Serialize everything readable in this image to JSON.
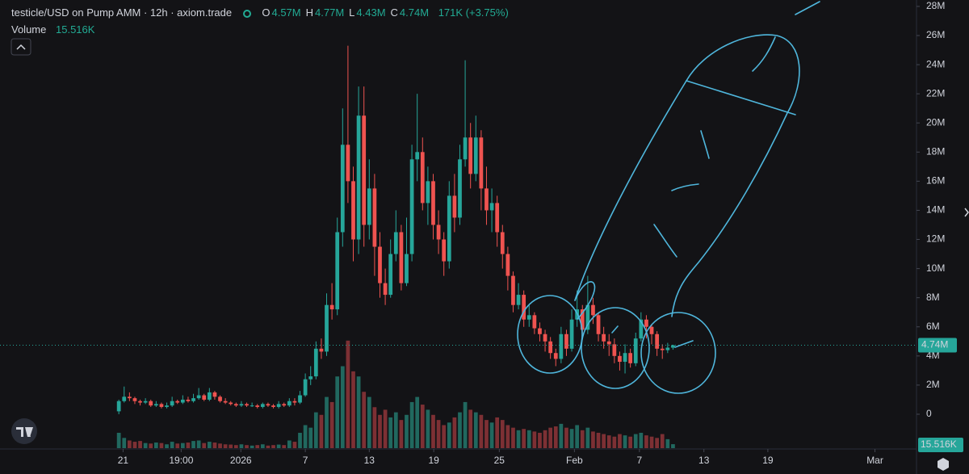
{
  "chart_data": {
    "type": "candlestick",
    "header": {
      "title": "testicle/USD on Pump AMM · 12h · axiom.trade",
      "ohlc": [
        {
          "key": "O",
          "value": "4.57M"
        },
        {
          "key": "H",
          "value": "4.77M"
        },
        {
          "key": "L",
          "value": "4.43M"
        },
        {
          "key": "C",
          "value": "4.74M"
        }
      ],
      "change": "171K (+3.75%)",
      "volume_title": "Volume",
      "volume_value": "15.516K"
    },
    "last_price_label": "4.74M",
    "last_volume_label": "15.516K",
    "up_color": "#26a69a",
    "down_color": "#ef5350",
    "volume_up_color": "#21685f",
    "volume_down_color": "#7d3034",
    "grid": false,
    "xlim": [
      -22.3,
      149.7
    ],
    "xticks": [
      {
        "value": 0.8,
        "label": "21"
      },
      {
        "value": 11.7,
        "label": "19:00"
      },
      {
        "value": 22.9,
        "label": "2026"
      },
      {
        "value": 35,
        "label": "7"
      },
      {
        "value": 47,
        "label": "13"
      },
      {
        "value": 59.1,
        "label": "19"
      },
      {
        "value": 71.4,
        "label": "25"
      },
      {
        "value": 85.5,
        "label": "Feb"
      },
      {
        "value": 97.7,
        "label": "7"
      },
      {
        "value": 109.8,
        "label": "13"
      },
      {
        "value": 121.8,
        "label": "19"
      },
      {
        "value": 141.9,
        "label": "Mar"
      }
    ],
    "ylim": [
      -2330000.0,
      28440000.0
    ],
    "yticks": [
      0,
      {
        "value": 2000000.0,
        "label": "2M"
      },
      {
        "value": 4000000.0,
        "label": "4M"
      },
      {
        "value": 6000000.0,
        "label": "6M"
      },
      {
        "value": 8000000.0,
        "label": "8M"
      },
      {
        "value": 10000000.0,
        "label": "10M"
      },
      {
        "value": 12000000.0,
        "label": "12M"
      },
      {
        "value": 14000000.0,
        "label": "14M"
      },
      {
        "value": 16000000.0,
        "label": "16M"
      },
      {
        "value": 18000000.0,
        "label": "18M"
      },
      {
        "value": 20000000.0,
        "label": "20M"
      },
      {
        "value": 22000000.0,
        "label": "22M"
      },
      {
        "value": 24000000.0,
        "label": "24M"
      },
      {
        "value": 26000000.0,
        "label": "26M"
      },
      {
        "value": 28000000.0,
        "label": "28M"
      }
    ],
    "y2lim": [
      0,
      1750000.0
    ],
    "open": [
      200000.0,
      900000.0,
      1200000.0,
      1100000.0,
      900000.0,
      800000.0,
      900000.0,
      600000.0,
      700000.0,
      500000.0,
      600000.0,
      900000.0,
      800000.0,
      1000000.0,
      900000.0,
      1100000.0,
      1300000.0,
      1000000.0,
      1500000.0,
      1200000.0,
      900000.0,
      800000.0,
      700000.0,
      600000.0,
      700000.0,
      600000.0,
      600000.0,
      500000.0,
      700000.0,
      600000.0,
      500000.0,
      700000.0,
      600000.0,
      900000.0,
      800000.0,
      1300000.0,
      2400000.0,
      2600000.0,
      4500000.0,
      4300000.0,
      7500000.0,
      7200000.0,
      12500000.0,
      18500000.0,
      16000000.0,
      12000000.0,
      20500000.0,
      13000000.0,
      15500000.0,
      11500000.0,
      9000000.0,
      8200000.0,
      11000000.0,
      12500000.0,
      9000000.0,
      11000000.0,
      17500000.0,
      18000000.0,
      14500000.0,
      16000000.0,
      13000000.0,
      12000000.0,
      10500000.0,
      15000000.0,
      13500000.0,
      17500000.0,
      19000000.0,
      16500000.0,
      19000000.0,
      15500000.0,
      14000000.0,
      14500000.0,
      12500000.0,
      11000000.0,
      9500000.0,
      7500000.0,
      8200000.0,
      6500000.0,
      6800000.0,
      5900000.0,
      5500000.0,
      5000000.0,
      4200000.0,
      3800000.0,
      5500000.0,
      4500000.0,
      6500000.0,
      7200000.0,
      5800000.0,
      7500000.0,
      6800000.0,
      5500000.0,
      5000000.0,
      4800000.0,
      4000000.0,
      3600000.0,
      4200000.0,
      3500000.0,
      5200000.0,
      6500000.0,
      6000000.0,
      5500000.0,
      4500000.0,
      4400000.0,
      4570000.0
    ],
    "high": [
      1000000.0,
      1900000.0,
      1500000.0,
      1200000.0,
      1000000.0,
      1100000.0,
      1000000.0,
      900000.0,
      800000.0,
      800000.0,
      1200000.0,
      1000000.0,
      1300000.0,
      1200000.0,
      1400000.0,
      1800000.0,
      1400000.0,
      1800000.0,
      1600000.0,
      1300000.0,
      1100000.0,
      900000.0,
      800000.0,
      900000.0,
      800000.0,
      800000.0,
      700000.0,
      800000.0,
      800000.0,
      700000.0,
      900000.0,
      800000.0,
      1100000.0,
      1100000.0,
      1600000.0,
      2800000.0,
      3300000.0,
      5000000.0,
      5200000.0,
      8300000.0,
      9000000.0,
      13500000.0,
      21000000.0,
      25300000.0,
      17000000.0,
      22500000.0,
      22500000.0,
      17500000.0,
      16500000.0,
      12500000.0,
      10000000.0,
      12000000.0,
      14000000.0,
      13000000.0,
      13500000.0,
      18500000.0,
      22000000.0,
      19000000.0,
      17000000.0,
      16500000.0,
      14000000.0,
      12500000.0,
      16000000.0,
      16500000.0,
      18500000.0,
      24300000.0,
      20000000.0,
      20500000.0,
      19500000.0,
      17000000.0,
      15500000.0,
      15000000.0,
      13000000.0,
      11500000.0,
      9800000.0,
      9000000.0,
      8500000.0,
      7500000.0,
      7000000.0,
      6300000.0,
      5800000.0,
      5300000.0,
      4500000.0,
      6000000.0,
      5800000.0,
      7200000.0,
      8500000.0,
      7500000.0,
      9500000.0,
      8000000.0,
      7000000.0,
      6000000.0,
      5500000.0,
      5200000.0,
      4300000.0,
      4800000.0,
      4500000.0,
      5600000.0,
      7000000.0,
      6800000.0,
      6200000.0,
      5700000.0,
      4800000.0,
      4900000.0,
      4770000.0
    ],
    "low": [
      0,
      800000.0,
      900000.0,
      700000.0,
      600000.0,
      700000.0,
      500000.0,
      500000.0,
      400000.0,
      400000.0,
      500000.0,
      700000.0,
      700000.0,
      800000.0,
      800000.0,
      1000000.0,
      900000.0,
      900000.0,
      1000000.0,
      800000.0,
      700000.0,
      600000.0,
      500000.0,
      500000.0,
      500000.0,
      500000.0,
      400000.0,
      400000.0,
      500000.0,
      400000.0,
      400000.0,
      500000.0,
      500000.0,
      600000.0,
      700000.0,
      1200000.0,
      2000000.0,
      2400000.0,
      3800000.0,
      4000000.0,
      6500000.0,
      6800000.0,
      11500000.0,
      14500000.0,
      10500000.0,
      11000000.0,
      11500000.0,
      12000000.0,
      9500000.0,
      8000000.0,
      7500000.0,
      8000000.0,
      10500000.0,
      8500000.0,
      8800000.0,
      10500000.0,
      16000000.0,
      14000000.0,
      13000000.0,
      12000000.0,
      11000000.0,
      9500000.0,
      10000000.0,
      12500000.0,
      13000000.0,
      17000000.0,
      15500000.0,
      16000000.0,
      14000000.0,
      13000000.0,
      12500000.0,
      11500000.0,
      10000000.0,
      8500000.0,
      7000000.0,
      7200000.0,
      6000000.0,
      6000000.0,
      5500000.0,
      5000000.0,
      4300000.0,
      3800000.0,
      3300000.0,
      3500000.0,
      4000000.0,
      4300000.0,
      6000000.0,
      5200000.0,
      5500000.0,
      6200000.0,
      5000000.0,
      4500000.0,
      4000000.0,
      3500000.0,
      3000000.0,
      2800000.0,
      3200000.0,
      3300000.0,
      5000000.0,
      5200000.0,
      4800000.0,
      4000000.0,
      3800000.0,
      4200000.0,
      4430000.0
    ],
    "close": [
      900000.0,
      1200000.0,
      1100000.0,
      900000.0,
      800000.0,
      900000.0,
      600000.0,
      700000.0,
      500000.0,
      600000.0,
      900000.0,
      800000.0,
      1000000.0,
      900000.0,
      1100000.0,
      1300000.0,
      1000000.0,
      1500000.0,
      1200000.0,
      900000.0,
      800000.0,
      700000.0,
      600000.0,
      700000.0,
      600000.0,
      600000.0,
      500000.0,
      700000.0,
      600000.0,
      500000.0,
      700000.0,
      600000.0,
      900000.0,
      800000.0,
      1300000.0,
      2400000.0,
      2600000.0,
      4500000.0,
      4300000.0,
      7500000.0,
      7200000.0,
      12500000.0,
      18500000.0,
      16000000.0,
      12000000.0,
      20500000.0,
      13000000.0,
      15500000.0,
      11500000.0,
      9000000.0,
      8200000.0,
      11000000.0,
      12500000.0,
      9000000.0,
      11000000.0,
      17500000.0,
      18000000.0,
      14500000.0,
      16000000.0,
      13000000.0,
      12000000.0,
      10500000.0,
      15000000.0,
      13500000.0,
      17500000.0,
      19000000.0,
      16500000.0,
      19000000.0,
      15500000.0,
      14000000.0,
      14500000.0,
      12500000.0,
      11000000.0,
      9500000.0,
      7500000.0,
      8200000.0,
      6500000.0,
      6800000.0,
      5900000.0,
      5500000.0,
      5000000.0,
      4200000.0,
      3800000.0,
      5500000.0,
      4500000.0,
      6500000.0,
      7200000.0,
      5800000.0,
      7500000.0,
      6800000.0,
      5500000.0,
      5000000.0,
      4800000.0,
      4000000.0,
      3600000.0,
      4200000.0,
      3500000.0,
      5200000.0,
      6500000.0,
      6000000.0,
      5500000.0,
      4500000.0,
      4400000.0,
      4570000.0,
      4740000.0
    ],
    "volume": [
      60000.0,
      40000.0,
      30000.0,
      25000.0,
      28000.0,
      20000.0,
      18000.0,
      22000.0,
      20000.0,
      15000.0,
      25000.0,
      18000.0,
      20000.0,
      22000.0,
      28000.0,
      30000.0,
      20000.0,
      25000.0,
      22000.0,
      18000.0,
      15000.0,
      14000.0,
      12000.0,
      15000.0,
      12000.0,
      10000.0,
      12000.0,
      15000.0,
      10000.0,
      12000.0,
      14000.0,
      12000.0,
      30000.0,
      25000.0,
      60000.0,
      90000.0,
      80000.0,
      140000.0,
      130000.0,
      200000.0,
      180000.0,
      280000.0,
      320000.0,
      420000.0,
      300000.0,
      280000.0,
      220000.0,
      200000.0,
      160000.0,
      130000.0,
      150000.0,
      120000.0,
      140000.0,
      110000.0,
      130000.0,
      180000.0,
      200000.0,
      170000.0,
      150000.0,
      130000.0,
      110000.0,
      90000.0,
      100000.0,
      120000.0,
      140000.0,
      180000.0,
      150000.0,
      140000.0,
      130000.0,
      110000.0,
      100000.0,
      120000.0,
      110000.0,
      90000.0,
      80000.0,
      70000.0,
      75000.0,
      70000.0,
      65000.0,
      60000.0,
      70000.0,
      80000.0,
      85000.0,
      95000.0,
      80000.0,
      75000.0,
      90000.0,
      70000.0,
      80000.0,
      65000.0,
      60000.0,
      55000.0,
      50000.0,
      45000.0,
      55000.0,
      50000.0,
      45000.0,
      55000.0,
      60000.0,
      50000.0,
      45000.0,
      40000.0,
      55000.0,
      35000.0,
      15516.0
    ]
  }
}
